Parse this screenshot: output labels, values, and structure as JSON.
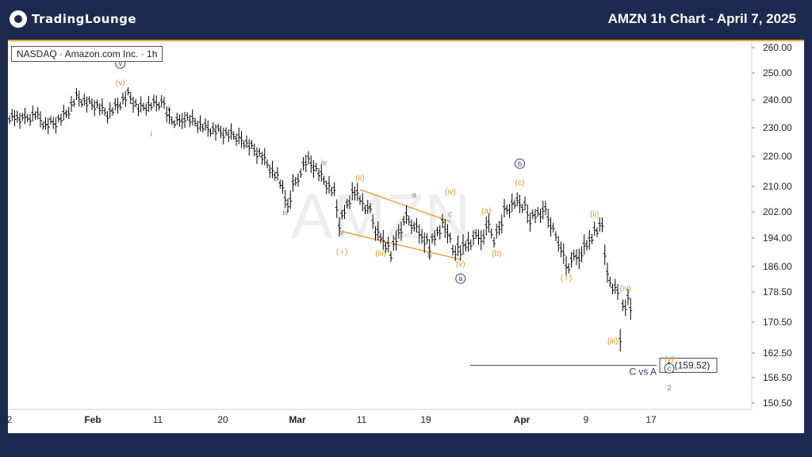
{
  "header": {
    "brand": "TradingLounge",
    "title": "AMZN 1h Chart - April 7, 2025"
  },
  "symbol_label": "NASDAQ · Amazon.com Inc. · 1h",
  "watermark": "AMZN",
  "colors": {
    "background": "#1b2a4e",
    "accent": "#f0a030",
    "price_bars": "#000000",
    "wave_orange": "#e8901c",
    "wave_gray": "#888888",
    "wave_navy": "#2c3e70"
  },
  "chart_data": {
    "type": "line",
    "title": "AMZN 1h Chart - April 7, 2025",
    "yticks": [
      260.0,
      250.0,
      240.0,
      230.0,
      220.0,
      210.0,
      202.0,
      194.0,
      186.0,
      178.5,
      170.5,
      162.5,
      156.5,
      150.5
    ],
    "ytick_labels": [
      "260.00",
      "250.00",
      "240.00",
      "230.00",
      "220.00",
      "210.00",
      "202.00",
      "194.00",
      "186.00",
      "178.50",
      "170.50",
      "162.50",
      "156.50",
      "150.50"
    ],
    "xtick_labels": [
      "2",
      "Feb",
      "11",
      "20",
      "Mar",
      "11",
      "19",
      "Apr",
      "9",
      "17"
    ],
    "xtick_bold": [
      false,
      true,
      false,
      false,
      true,
      false,
      false,
      true,
      false,
      false
    ],
    "price_path": [
      [
        0,
        234
      ],
      [
        3,
        234
      ],
      [
        6,
        233
      ],
      [
        10,
        235
      ],
      [
        14,
        231
      ],
      [
        18,
        232
      ],
      [
        22,
        235
      ],
      [
        26,
        241
      ],
      [
        30,
        239
      ],
      [
        34,
        238
      ],
      [
        38,
        235
      ],
      [
        42,
        238
      ],
      [
        46,
        242
      ],
      [
        50,
        237
      ],
      [
        54,
        238
      ],
      [
        58,
        239
      ],
      [
        60,
        239
      ],
      [
        62,
        233
      ],
      [
        64,
        232
      ],
      [
        66,
        232
      ],
      [
        68,
        234
      ],
      [
        72,
        232
      ],
      [
        76,
        230
      ],
      [
        80,
        229
      ],
      [
        84,
        228
      ],
      [
        88,
        227
      ],
      [
        90,
        226
      ],
      [
        94,
        223
      ],
      [
        98,
        220
      ],
      [
        102,
        215
      ],
      [
        105,
        212
      ],
      [
        108,
        204
      ],
      [
        110,
        210
      ],
      [
        113,
        215
      ],
      [
        116,
        219
      ],
      [
        118,
        217
      ],
      [
        122,
        212
      ],
      [
        126,
        208
      ],
      [
        128,
        198
      ],
      [
        131,
        204
      ],
      [
        134,
        209
      ],
      [
        137,
        205
      ],
      [
        140,
        202
      ],
      [
        142,
        196
      ],
      [
        145,
        193
      ],
      [
        148,
        190
      ],
      [
        151,
        196
      ],
      [
        154,
        200
      ],
      [
        157,
        198
      ],
      [
        160,
        194
      ],
      [
        163,
        192
      ],
      [
        166,
        196
      ],
      [
        168,
        198
      ],
      [
        170,
        196
      ],
      [
        172,
        190
      ],
      [
        175,
        191
      ],
      [
        178,
        193
      ],
      [
        181,
        194
      ],
      [
        184,
        195
      ],
      [
        186,
        198
      ],
      [
        188,
        194
      ],
      [
        190,
        197
      ],
      [
        192,
        202
      ],
      [
        196,
        205
      ],
      [
        200,
        204
      ],
      [
        202,
        200
      ],
      [
        205,
        202
      ],
      [
        208,
        202
      ],
      [
        210,
        198
      ],
      [
        212,
        194
      ],
      [
        214,
        192
      ],
      [
        216,
        186
      ],
      [
        219,
        188
      ],
      [
        222,
        190
      ],
      [
        225,
        193
      ],
      [
        228,
        197
      ],
      [
        230,
        198
      ],
      [
        232,
        183
      ],
      [
        234,
        180
      ],
      [
        236,
        178
      ],
      [
        237,
        167
      ],
      [
        238,
        175
      ],
      [
        240,
        176
      ],
      [
        242,
        172
      ]
    ],
    "horizontal_level": {
      "value": 159.52,
      "label": "1 (159.52)",
      "annotation": "C vs A"
    },
    "wave_labels": [
      {
        "text": "v",
        "style": "circle-navy",
        "x": 43,
        "y": 252.5
      },
      {
        "text": "(v)",
        "style": "orange",
        "x": 43,
        "y": 245.5
      },
      {
        "text": "ii",
        "style": "gray",
        "x": 62,
        "y": 236
      },
      {
        "text": "i",
        "style": "gray",
        "x": 55,
        "y": 227
      },
      {
        "text": "iv",
        "style": "gray",
        "x": 122,
        "y": 217
      },
      {
        "text": "iii",
        "style": "gray",
        "x": 107,
        "y": 201
      },
      {
        "text": "v",
        "style": "gray",
        "x": 129,
        "y": 195
      },
      {
        "text": "( i )",
        "style": "orange",
        "x": 129,
        "y": 189.5
      },
      {
        "text": "(ii)",
        "style": "orange",
        "x": 136,
        "y": 212
      },
      {
        "text": "(iii)",
        "style": "orange",
        "x": 144,
        "y": 189
      },
      {
        "text": "a",
        "style": "gray",
        "x": 157,
        "y": 206.5
      },
      {
        "text": "b",
        "style": "gray",
        "x": 163,
        "y": 188.5
      },
      {
        "text": "c",
        "style": "gray",
        "x": 171,
        "y": 200.5
      },
      {
        "text": "(iv)",
        "style": "orange",
        "x": 171,
        "y": 207.5
      },
      {
        "text": "(v)",
        "style": "orange",
        "x": 175,
        "y": 186
      },
      {
        "text": "a",
        "style": "circle-navy",
        "x": 175,
        "y": 181.5
      },
      {
        "text": "(a)",
        "style": "orange",
        "x": 185,
        "y": 201.5
      },
      {
        "text": "(b)",
        "style": "orange",
        "x": 189,
        "y": 189
      },
      {
        "text": "(c)",
        "style": "orange",
        "x": 198,
        "y": 210.5
      },
      {
        "text": "b",
        "style": "circle-navy",
        "x": 198,
        "y": 216.5
      },
      {
        "text": "( i )",
        "style": "orange",
        "x": 216,
        "y": 182
      },
      {
        "text": "(ii)",
        "style": "orange",
        "x": 227,
        "y": 200.5
      },
      {
        "text": "(iv)",
        "style": "orange",
        "x": 239,
        "y": 178.8
      },
      {
        "text": "(iii)",
        "style": "orange",
        "x": 234,
        "y": 165
      },
      {
        "text": "(v)",
        "style": "orange",
        "x": 256,
        "y": 160.5
      },
      {
        "text": "c",
        "style": "circle-navy",
        "x": 256,
        "y": 158
      },
      {
        "text": "2",
        "style": "gray",
        "x": 256,
        "y": 153.5
      }
    ],
    "channel_lines": [
      {
        "from": [
          136,
          209
        ],
        "to": [
          171,
          199
        ]
      },
      {
        "from": [
          129,
          196
        ],
        "to": [
          175,
          188
        ]
      }
    ],
    "grid": false,
    "legend": "none"
  }
}
